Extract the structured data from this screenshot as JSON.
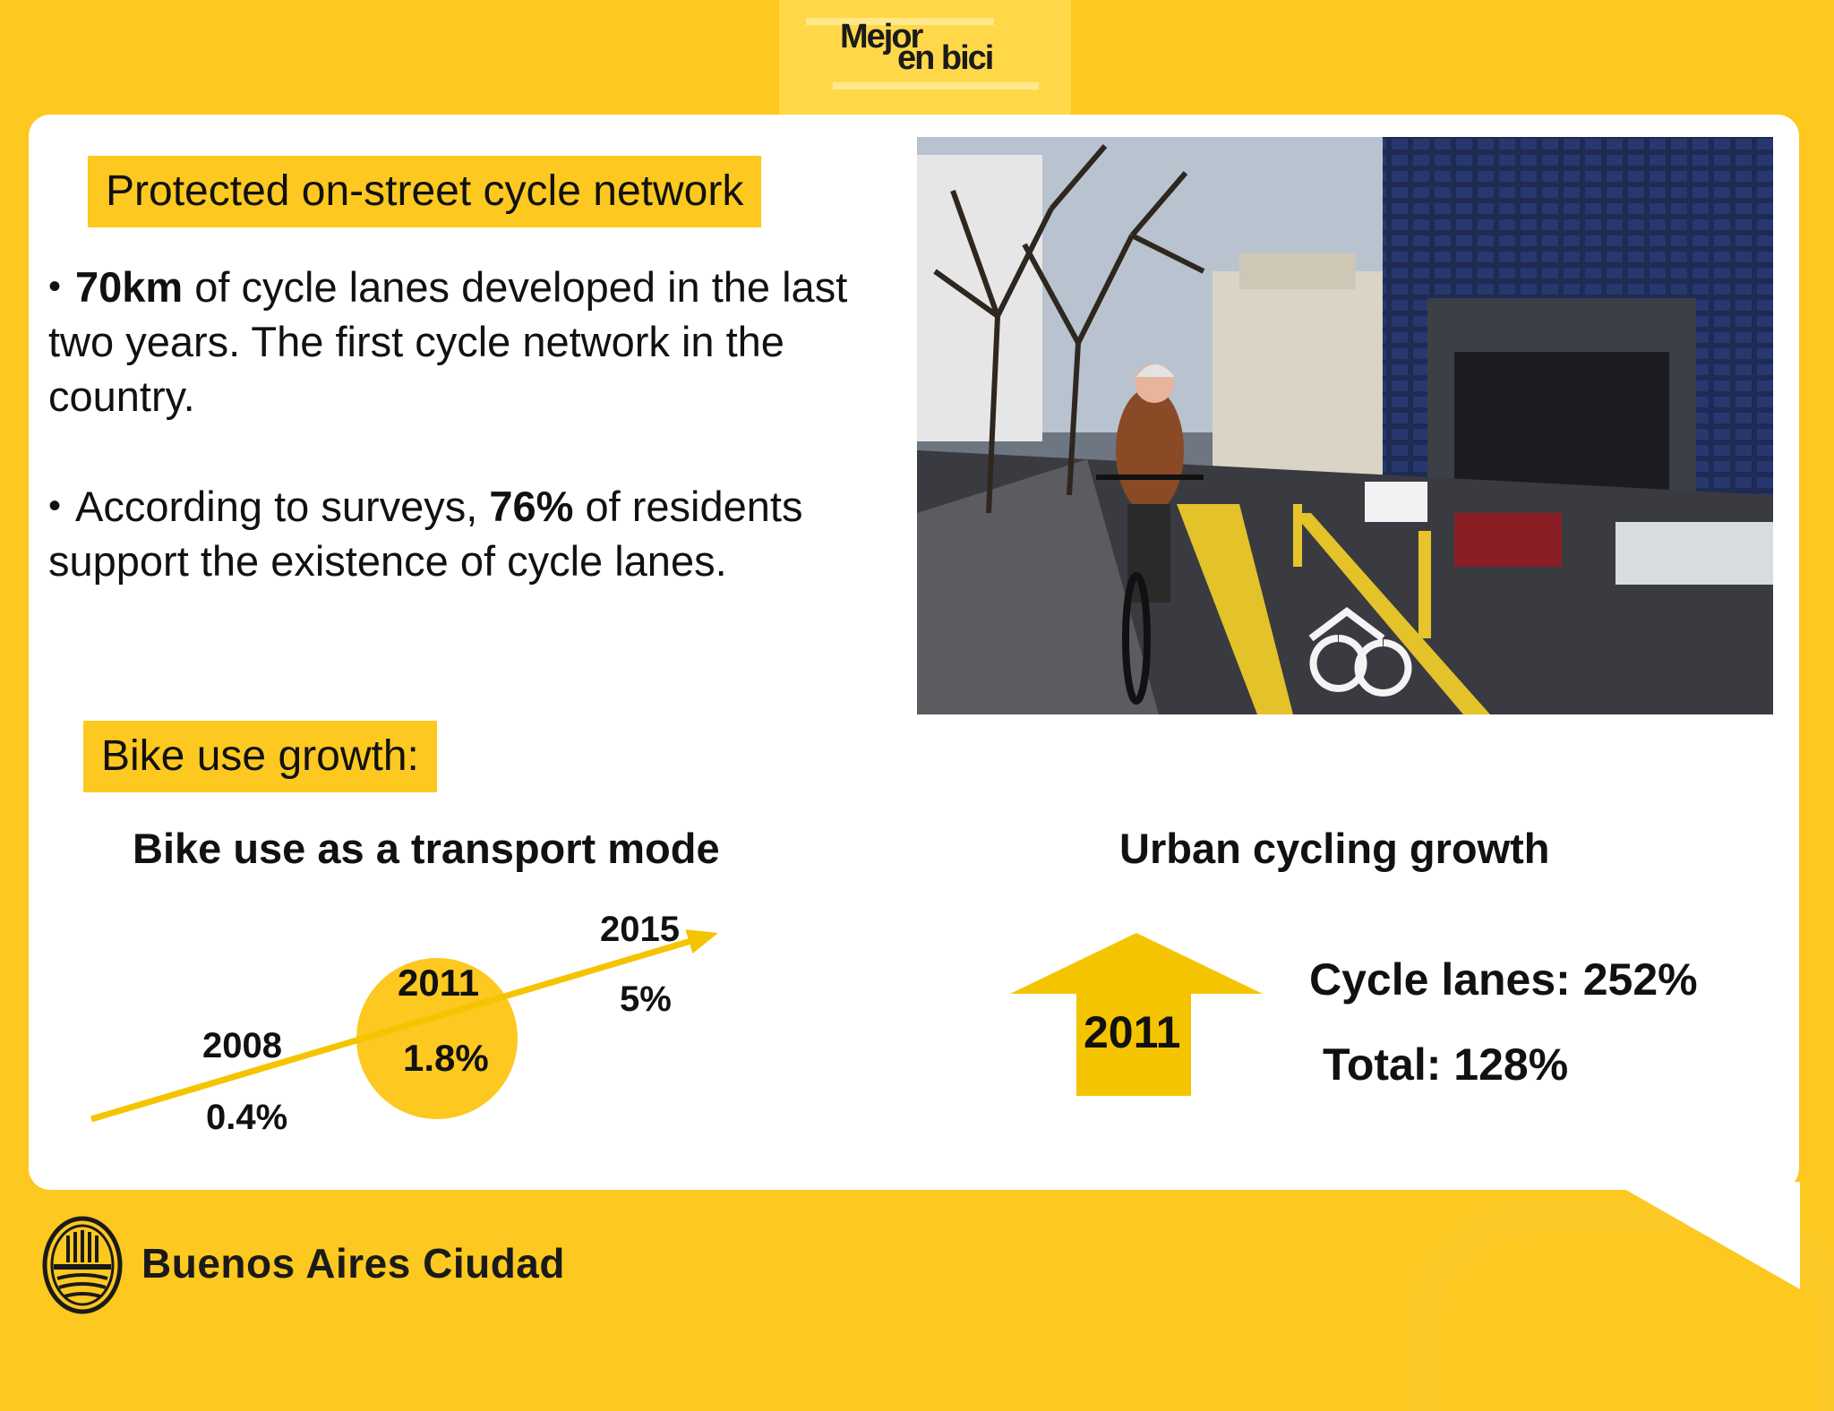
{
  "brand": {
    "logo_line1": "Mejor",
    "logo_line2": "en bici",
    "footer_name": "Buenos Aires Ciudad"
  },
  "section_heading": "Protected on-street cycle network",
  "paragraphs": {
    "p1": {
      "bold": "70km",
      "rest": " of cycle lanes developed in the last two years. The first cycle network in the country."
    },
    "p2": {
      "pre": "According to surveys, ",
      "bold": "76%",
      "rest": " of residents support the existence of cycle lanes."
    }
  },
  "growth_heading": "Bike use growth:",
  "chart_data": [
    {
      "type": "line",
      "title": "Bike use as a transport mode",
      "x": [
        "2008",
        "2011",
        "2015"
      ],
      "series": [
        {
          "values": [
            0.4,
            1.8,
            5
          ]
        }
      ],
      "labels": [
        "0.4%",
        "1.8%",
        "5%"
      ],
      "highlight": "2011"
    },
    {
      "type": "table",
      "title": "Urban cycling growth",
      "year": "2011",
      "rows": [
        {
          "label": "Cycle lanes",
          "value": 252,
          "text": "Cycle lanes: 252%"
        },
        {
          "label": "Total",
          "value": 128,
          "text": "Total: 128%"
        }
      ]
    }
  ],
  "colors": {
    "accent": "#FDC81F",
    "panel": "#FFFFFF",
    "arrow": "#F5C400",
    "text": "#111111"
  }
}
